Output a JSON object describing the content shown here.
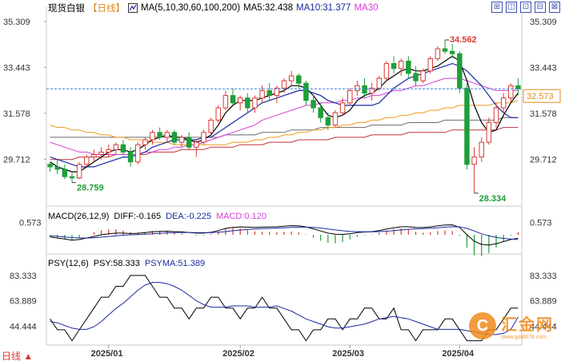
{
  "header": {
    "instrument": "现货白银",
    "period_tag": "【日线】",
    "ma_params": "MA(5,10,30,60,100,200)",
    "ma5": "MA5:32.438",
    "ma10": "MA10:31.377",
    "ma30": "MA30"
  },
  "toolbar": {
    "buttons": [
      "⊞",
      "◫",
      "⊡",
      "⊟",
      "⊠"
    ]
  },
  "macd_legend": {
    "params": "MACD(26,12,9)",
    "diff": "DIFF:-0.165",
    "dea": "DEA:-0.225",
    "macd": "MACD:0.120"
  },
  "psy_legend": {
    "params": "PSY(12,6)",
    "psy": "PSY:58.333",
    "psyma": "PSYMA:51.389"
  },
  "period_label": "日线 ▲",
  "watermark": {
    "logo": "C",
    "brand": "汇金网",
    "url": "www.gold678.com"
  },
  "colors": {
    "up": "#d93a34",
    "down": "#1f9e3a",
    "ma5": "#000000",
    "ma10": "#1a2aa0",
    "ma30": "#d93ad9",
    "ma60": "#f09a1e",
    "ma100": "#6b6b6b",
    "ma200": "#c4303a",
    "price_line": "#3f7fd6"
  },
  "chart_data": [
    {
      "type": "candlestick",
      "y_ticks": [
        "35.309",
        "33.443",
        "31.578",
        "29.712"
      ],
      "ylim": [
        28.0,
        35.6
      ],
      "x_ticks": [
        "2025/01",
        "2025/02",
        "2025/03",
        "2025/04"
      ],
      "current_price": "32.573",
      "max_label": "34.562",
      "min_labels": [
        "28.759",
        "28.334"
      ],
      "candles": [
        [
          29.5,
          29.6,
          29.2,
          29.4
        ],
        [
          29.4,
          29.7,
          29.1,
          29.3
        ],
        [
          29.3,
          29.5,
          28.9,
          29.0
        ],
        [
          29.0,
          29.2,
          28.76,
          28.95
        ],
        [
          28.95,
          29.6,
          28.9,
          29.5
        ],
        [
          29.5,
          29.9,
          29.4,
          29.8
        ],
        [
          29.8,
          30.1,
          29.6,
          29.9
        ],
        [
          29.9,
          30.2,
          29.7,
          30.0
        ],
        [
          30.0,
          30.3,
          29.8,
          30.1
        ],
        [
          30.1,
          30.4,
          29.9,
          30.3
        ],
        [
          30.3,
          30.5,
          29.9,
          30.0
        ],
        [
          30.0,
          30.2,
          29.4,
          29.6
        ],
        [
          29.6,
          30.4,
          29.5,
          30.3
        ],
        [
          30.3,
          30.6,
          30.1,
          30.5
        ],
        [
          30.5,
          30.9,
          30.3,
          30.8
        ],
        [
          30.8,
          31.0,
          30.5,
          30.6
        ],
        [
          30.6,
          30.9,
          30.4,
          30.8
        ],
        [
          30.8,
          30.9,
          30.3,
          30.4
        ],
        [
          30.4,
          30.7,
          30.2,
          30.6
        ],
        [
          30.6,
          30.8,
          30.1,
          30.2
        ],
        [
          30.2,
          30.5,
          29.8,
          30.4
        ],
        [
          30.4,
          30.9,
          30.3,
          30.8
        ],
        [
          30.8,
          31.4,
          30.7,
          31.3
        ],
        [
          31.3,
          31.9,
          31.2,
          31.8
        ],
        [
          31.8,
          32.5,
          31.7,
          32.3
        ],
        [
          32.3,
          32.6,
          31.9,
          32.0
        ],
        [
          32.0,
          32.3,
          31.7,
          32.2
        ],
        [
          32.2,
          32.4,
          31.6,
          31.8
        ],
        [
          31.8,
          32.3,
          31.6,
          32.2
        ],
        [
          32.2,
          32.7,
          32.0,
          32.5
        ],
        [
          32.5,
          32.8,
          32.1,
          32.3
        ],
        [
          32.3,
          32.7,
          32.0,
          32.6
        ],
        [
          32.6,
          33.0,
          32.4,
          32.9
        ],
        [
          32.9,
          33.3,
          32.7,
          33.1
        ],
        [
          33.1,
          33.2,
          32.6,
          32.8
        ],
        [
          32.8,
          32.9,
          31.9,
          32.1
        ],
        [
          32.1,
          32.3,
          31.6,
          31.8
        ],
        [
          31.8,
          32.0,
          31.2,
          31.4
        ],
        [
          31.4,
          31.6,
          30.9,
          31.1
        ],
        [
          31.1,
          31.7,
          31.0,
          31.6
        ],
        [
          31.6,
          32.2,
          31.5,
          32.0
        ],
        [
          32.0,
          32.6,
          31.9,
          32.5
        ],
        [
          32.5,
          32.9,
          32.3,
          32.7
        ],
        [
          32.7,
          33.0,
          32.2,
          32.4
        ],
        [
          32.4,
          32.8,
          32.1,
          32.6
        ],
        [
          32.6,
          33.1,
          32.5,
          33.0
        ],
        [
          33.0,
          33.7,
          32.9,
          33.6
        ],
        [
          33.6,
          33.9,
          33.2,
          33.4
        ],
        [
          33.4,
          33.8,
          33.1,
          33.7
        ],
        [
          33.7,
          33.9,
          33.0,
          33.2
        ],
        [
          33.2,
          33.5,
          32.7,
          32.9
        ],
        [
          32.9,
          33.4,
          32.8,
          33.3
        ],
        [
          33.3,
          33.9,
          33.2,
          33.8
        ],
        [
          33.8,
          34.3,
          33.7,
          34.2
        ],
        [
          34.2,
          34.56,
          34.0,
          34.1
        ],
        [
          34.1,
          34.4,
          33.8,
          34.0
        ],
        [
          34.0,
          34.1,
          32.4,
          32.6
        ],
        [
          32.6,
          32.8,
          29.3,
          29.5
        ],
        [
          29.5,
          30.2,
          28.33,
          29.8
        ],
        [
          29.8,
          30.6,
          29.6,
          30.4
        ],
        [
          30.4,
          31.4,
          30.3,
          31.2
        ],
        [
          31.2,
          32.0,
          31.0,
          31.8
        ],
        [
          31.8,
          32.4,
          31.6,
          32.2
        ],
        [
          32.2,
          32.8,
          32.0,
          32.7
        ],
        [
          32.7,
          33.0,
          32.3,
          32.57
        ]
      ],
      "ma_lines": {
        "ma5": [
          29.6,
          29.4,
          29.3,
          29.2,
          29.2,
          29.4,
          29.6,
          29.8,
          30.0,
          30.1,
          30.1,
          30.0,
          30.1,
          30.3,
          30.5,
          30.6,
          30.7,
          30.6,
          30.6,
          30.5,
          30.4,
          30.5,
          30.7,
          31.1,
          31.6,
          31.9,
          32.1,
          32.1,
          32.1,
          32.2,
          32.3,
          32.4,
          32.5,
          32.7,
          32.7,
          32.6,
          32.3,
          31.9,
          31.5,
          31.4,
          31.5,
          31.7,
          32.1,
          32.3,
          32.4,
          32.6,
          32.9,
          33.1,
          33.3,
          33.4,
          33.3,
          33.3,
          33.4,
          33.5,
          33.7,
          33.9,
          33.7,
          32.9,
          31.9,
          31.2,
          30.8,
          30.9,
          31.5,
          32.0,
          32.4
        ],
        "ma10": [
          29.8,
          29.7,
          29.6,
          29.5,
          29.4,
          29.4,
          29.4,
          29.5,
          29.6,
          29.7,
          29.8,
          29.8,
          29.9,
          30.0,
          30.2,
          30.3,
          30.4,
          30.5,
          30.5,
          30.5,
          30.5,
          30.6,
          30.6,
          30.8,
          31.0,
          31.2,
          31.4,
          31.6,
          31.8,
          32.0,
          32.1,
          32.2,
          32.3,
          32.4,
          32.5,
          32.5,
          32.4,
          32.3,
          32.1,
          32.0,
          31.9,
          31.9,
          31.9,
          31.9,
          31.9,
          32.0,
          32.3,
          32.6,
          32.8,
          33.0,
          33.1,
          33.2,
          33.3,
          33.4,
          33.5,
          33.6,
          33.5,
          33.3,
          33.0,
          32.7,
          32.3,
          31.9,
          31.6,
          31.4,
          31.4
        ],
        "ma30": [
          30.4,
          30.3,
          30.2,
          30.1,
          30.0,
          30.0,
          29.9,
          29.9,
          29.9,
          29.9,
          29.9,
          29.9,
          29.9,
          30.0,
          30.0,
          30.1,
          30.1,
          30.2,
          30.2,
          30.3,
          30.3,
          30.4,
          30.5,
          30.6,
          30.7,
          30.8,
          30.9,
          31.0,
          31.1,
          31.3,
          31.4,
          31.5,
          31.6,
          31.7,
          31.8,
          31.9,
          31.9,
          32.0,
          32.0,
          32.0,
          32.1,
          32.1,
          32.2,
          32.2,
          32.3,
          32.3,
          32.4,
          32.5,
          32.5,
          32.6,
          32.7,
          32.7,
          32.8,
          32.9,
          33.0,
          33.0,
          33.0,
          32.9,
          32.8,
          32.7,
          32.6,
          32.5,
          32.5,
          32.5,
          32.5
        ],
        "ma60": [
          31.1,
          31.0,
          31.0,
          30.9,
          30.9,
          30.8,
          30.8,
          30.7,
          30.7,
          30.6,
          30.6,
          30.5,
          30.5,
          30.5,
          30.4,
          30.4,
          30.4,
          30.3,
          30.3,
          30.3,
          30.3,
          30.3,
          30.3,
          30.3,
          30.3,
          30.4,
          30.4,
          30.4,
          30.5,
          30.5,
          30.6,
          30.6,
          30.7,
          30.7,
          30.8,
          30.8,
          30.9,
          30.9,
          31.0,
          31.0,
          31.1,
          31.1,
          31.2,
          31.2,
          31.3,
          31.3,
          31.4,
          31.4,
          31.5,
          31.5,
          31.6,
          31.6,
          31.7,
          31.7,
          31.8,
          31.8,
          31.9,
          31.9,
          31.9,
          31.9,
          31.9,
          32.0,
          32.0,
          32.0,
          32.1
        ],
        "ma100": [
          30.6,
          30.6,
          30.6,
          30.6,
          30.6,
          30.6,
          30.6,
          30.6,
          30.6,
          30.6,
          30.6,
          30.6,
          30.6,
          30.6,
          30.6,
          30.6,
          30.6,
          30.6,
          30.6,
          30.6,
          30.6,
          30.6,
          30.6,
          30.6,
          30.7,
          30.7,
          30.7,
          30.7,
          30.7,
          30.8,
          30.8,
          30.8,
          30.8,
          30.9,
          30.9,
          30.9,
          30.9,
          31.0,
          31.0,
          31.0,
          31.0,
          31.0,
          31.0,
          31.0,
          31.1,
          31.1,
          31.1,
          31.1,
          31.1,
          31.2,
          31.2,
          31.2,
          31.2,
          31.2,
          31.3,
          31.3,
          31.3,
          31.3,
          31.3,
          31.3,
          31.3,
          31.3,
          31.4,
          31.4,
          31.4
        ],
        "ma200": [
          29.7,
          29.7,
          29.7,
          29.7,
          29.8,
          29.8,
          29.8,
          29.8,
          29.8,
          29.9,
          29.9,
          29.9,
          29.9,
          29.9,
          30.0,
          30.0,
          30.0,
          30.0,
          30.1,
          30.1,
          30.1,
          30.1,
          30.2,
          30.2,
          30.2,
          30.2,
          30.3,
          30.3,
          30.3,
          30.3,
          30.4,
          30.4,
          30.4,
          30.4,
          30.5,
          30.5,
          30.5,
          30.5,
          30.5,
          30.6,
          30.6,
          30.6,
          30.6,
          30.6,
          30.7,
          30.7,
          30.7,
          30.7,
          30.7,
          30.8,
          30.8,
          30.8,
          30.8,
          30.8,
          30.8,
          30.9,
          30.9,
          30.9,
          30.9,
          30.9,
          30.9,
          30.9,
          31.0,
          31.0,
          31.0
        ]
      }
    },
    {
      "type": "macd",
      "y_ticks": [
        "0.573"
      ],
      "ylim": [
        -0.9,
        0.9
      ],
      "diff": [
        -0.1,
        -0.15,
        -0.2,
        -0.25,
        -0.22,
        -0.15,
        -0.08,
        0.0,
        0.05,
        0.08,
        0.08,
        0.06,
        0.07,
        0.1,
        0.14,
        0.16,
        0.17,
        0.15,
        0.14,
        0.11,
        0.08,
        0.08,
        0.12,
        0.2,
        0.3,
        0.35,
        0.37,
        0.36,
        0.35,
        0.36,
        0.37,
        0.38,
        0.4,
        0.43,
        0.42,
        0.37,
        0.28,
        0.18,
        0.08,
        0.03,
        0.02,
        0.05,
        0.1,
        0.13,
        0.15,
        0.2,
        0.27,
        0.33,
        0.38,
        0.38,
        0.35,
        0.34,
        0.37,
        0.42,
        0.46,
        0.47,
        0.35,
        0.0,
        -0.3,
        -0.45,
        -0.48,
        -0.42,
        -0.32,
        -0.22,
        -0.165
      ],
      "dea": [
        -0.05,
        -0.07,
        -0.1,
        -0.13,
        -0.15,
        -0.15,
        -0.14,
        -0.11,
        -0.08,
        -0.05,
        -0.02,
        0.0,
        0.01,
        0.03,
        0.05,
        0.07,
        0.09,
        0.1,
        0.11,
        0.11,
        0.1,
        0.1,
        0.1,
        0.12,
        0.15,
        0.19,
        0.22,
        0.25,
        0.27,
        0.29,
        0.3,
        0.32,
        0.33,
        0.35,
        0.36,
        0.36,
        0.35,
        0.32,
        0.27,
        0.23,
        0.19,
        0.16,
        0.15,
        0.14,
        0.14,
        0.15,
        0.17,
        0.2,
        0.23,
        0.26,
        0.28,
        0.29,
        0.31,
        0.33,
        0.36,
        0.38,
        0.37,
        0.3,
        0.18,
        0.05,
        -0.05,
        -0.12,
        -0.17,
        -0.2,
        -0.225
      ]
    },
    {
      "type": "psy",
      "y_ticks": [
        "83.333",
        "63.889",
        "44.444"
      ],
      "ylim": [
        30,
        90
      ],
      "psy": [
        50,
        41.7,
        41.7,
        33.3,
        41.7,
        50,
        58.3,
        66.7,
        66.7,
        75,
        75,
        83.3,
        83.3,
        83.3,
        75,
        66.7,
        66.7,
        58.3,
        58.3,
        50,
        58.3,
        58.3,
        66.7,
        66.7,
        58.3,
        58.3,
        50,
        58.3,
        58.3,
        66.7,
        58.3,
        58.3,
        50,
        41.7,
        41.7,
        33.3,
        41.7,
        41.7,
        50,
        50,
        41.7,
        50,
        50,
        58.3,
        58.3,
        50,
        50,
        58.3,
        41.7,
        41.7,
        33.3,
        41.7,
        41.7,
        41.7,
        50,
        50,
        41.7,
        33.3,
        33.3,
        33.3,
        41.7,
        41.7,
        50,
        58.3,
        58.3
      ],
      "psyma": [
        48,
        47,
        45,
        43,
        42,
        42,
        44,
        48,
        53,
        58,
        62,
        67,
        72,
        76,
        78,
        78,
        77,
        75,
        72,
        68,
        64,
        61,
        59,
        59,
        59,
        60,
        60,
        60,
        59,
        59,
        59,
        60,
        58,
        56,
        53,
        50,
        48,
        46,
        44,
        43,
        43,
        44,
        45,
        46,
        48,
        50,
        51,
        52,
        51,
        50,
        48,
        46,
        44,
        42,
        42,
        42,
        42,
        41,
        40,
        39,
        38,
        38,
        39,
        42,
        51.4
      ]
    }
  ]
}
